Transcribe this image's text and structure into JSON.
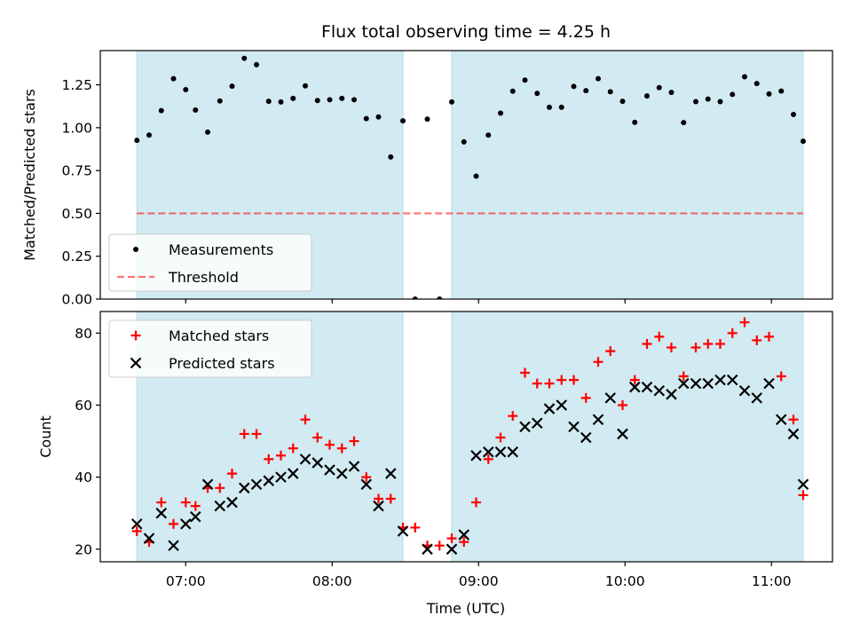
{
  "chart_data": {
    "type": "scatter",
    "title": "Flux total observing time = 4.25 h",
    "x_axis": {
      "label": "Time (UTC)",
      "range": [
        "06:25",
        "11:25"
      ],
      "ticks": [
        "07:00",
        "08:00",
        "09:00",
        "10:00",
        "11:00"
      ]
    },
    "colors": {
      "band": "#add8e6",
      "measurement": "#000000",
      "threshold": "#ff0000",
      "matched": "#ff0000",
      "predicted": "#000000"
    },
    "observing_windows": [
      [
        "06:40",
        "08:29"
      ],
      [
        "08:49",
        "11:13"
      ]
    ],
    "panels": [
      {
        "name": "ratio",
        "ylabel": "Matched/Predicted stars",
        "ylim": [
          0,
          1.45
        ],
        "yticks": [
          "0.00",
          "0.25",
          "0.50",
          "0.75",
          "1.00",
          "1.25"
        ],
        "legend_position": "lower-left",
        "series": [
          {
            "name": "Measurements",
            "marker": "dot",
            "points": [
              [
                "06:40",
                0.926
              ],
              [
                "06:45",
                0.957
              ],
              [
                "06:50",
                1.1
              ],
              [
                "06:55",
                1.286
              ],
              [
                "07:00",
                1.222
              ],
              [
                "07:04",
                1.103
              ],
              [
                "07:09",
                0.974
              ],
              [
                "07:14",
                1.156
              ],
              [
                "07:19",
                1.242
              ],
              [
                "07:24",
                1.405
              ],
              [
                "07:29",
                1.368
              ],
              [
                "07:34",
                1.154
              ],
              [
                "07:39",
                1.15
              ],
              [
                "07:44",
                1.171
              ],
              [
                "07:49",
                1.244
              ],
              [
                "07:54",
                1.159
              ],
              [
                "07:59",
                1.163
              ],
              [
                "08:04",
                1.171
              ],
              [
                "08:09",
                1.163
              ],
              [
                "08:14",
                1.053
              ],
              [
                "08:19",
                1.063
              ],
              [
                "08:24",
                0.829
              ],
              [
                "08:29",
                1.04
              ],
              [
                "08:34",
                0.0
              ],
              [
                "08:39",
                1.05
              ],
              [
                "08:44",
                0.0
              ],
              [
                "08:49",
                1.15
              ],
              [
                "08:54",
                0.917
              ],
              [
                "08:59",
                0.717
              ],
              [
                "09:04",
                0.957
              ],
              [
                "09:09",
                1.085
              ],
              [
                "09:14",
                1.213
              ],
              [
                "09:19",
                1.278
              ],
              [
                "09:24",
                1.2
              ],
              [
                "09:29",
                1.119
              ],
              [
                "09:34",
                1.119
              ],
              [
                "09:39",
                1.241
              ],
              [
                "09:44",
                1.216
              ],
              [
                "09:49",
                1.286
              ],
              [
                "09:54",
                1.21
              ],
              [
                "09:59",
                1.154
              ],
              [
                "10:04",
                1.031
              ],
              [
                "10:09",
                1.185
              ],
              [
                "10:14",
                1.234
              ],
              [
                "10:19",
                1.206
              ],
              [
                "10:24",
                1.03
              ],
              [
                "10:29",
                1.152
              ],
              [
                "10:34",
                1.167
              ],
              [
                "10:39",
                1.152
              ],
              [
                "10:44",
                1.194
              ],
              [
                "10:49",
                1.297
              ],
              [
                "10:54",
                1.258
              ],
              [
                "10:59",
                1.197
              ],
              [
                "11:04",
                1.214
              ],
              [
                "11:09",
                1.077
              ],
              [
                "11:13",
                0.921
              ]
            ]
          },
          {
            "name": "Threshold",
            "marker": "dashed-line",
            "points": [
              [
                "06:40",
                0.5
              ],
              [
                "11:13",
                0.5
              ]
            ]
          }
        ]
      },
      {
        "name": "counts",
        "ylabel": "Count",
        "ylim": [
          16.5,
          86
        ],
        "yticks": [
          "20",
          "40",
          "60",
          "80"
        ],
        "legend_position": "upper-left",
        "series": [
          {
            "name": "Matched stars",
            "marker": "plus",
            "points": [
              [
                "06:40",
                25
              ],
              [
                "06:45",
                22
              ],
              [
                "06:50",
                33
              ],
              [
                "06:55",
                27
              ],
              [
                "07:00",
                33
              ],
              [
                "07:04",
                32
              ],
              [
                "07:09",
                37
              ],
              [
                "07:14",
                37
              ],
              [
                "07:19",
                41
              ],
              [
                "07:24",
                52
              ],
              [
                "07:29",
                52
              ],
              [
                "07:34",
                45
              ],
              [
                "07:39",
                46
              ],
              [
                "07:44",
                48
              ],
              [
                "07:49",
                56
              ],
              [
                "07:54",
                51
              ],
              [
                "07:59",
                49
              ],
              [
                "08:04",
                48
              ],
              [
                "08:09",
                50
              ],
              [
                "08:14",
                40
              ],
              [
                "08:19",
                34
              ],
              [
                "08:24",
                34
              ],
              [
                "08:29",
                26
              ],
              [
                "08:34",
                26
              ],
              [
                "08:39",
                21
              ],
              [
                "08:44",
                21
              ],
              [
                "08:49",
                23
              ],
              [
                "08:54",
                22
              ],
              [
                "08:59",
                33
              ],
              [
                "09:04",
                45
              ],
              [
                "09:09",
                51
              ],
              [
                "09:14",
                57
              ],
              [
                "09:19",
                69
              ],
              [
                "09:24",
                66
              ],
              [
                "09:29",
                66
              ],
              [
                "09:34",
                67
              ],
              [
                "09:39",
                67
              ],
              [
                "09:44",
                62
              ],
              [
                "09:49",
                72
              ],
              [
                "09:54",
                75
              ],
              [
                "09:59",
                60
              ],
              [
                "10:04",
                67
              ],
              [
                "10:09",
                77
              ],
              [
                "10:14",
                79
              ],
              [
                "10:19",
                76
              ],
              [
                "10:24",
                68
              ],
              [
                "10:29",
                76
              ],
              [
                "10:34",
                77
              ],
              [
                "10:39",
                77
              ],
              [
                "10:44",
                80
              ],
              [
                "10:49",
                83
              ],
              [
                "10:54",
                78
              ],
              [
                "10:59",
                79
              ],
              [
                "11:04",
                68
              ],
              [
                "11:09",
                56
              ],
              [
                "11:13",
                35
              ]
            ]
          },
          {
            "name": "Predicted stars",
            "marker": "cross",
            "points": [
              [
                "06:40",
                27
              ],
              [
                "06:45",
                23
              ],
              [
                "06:50",
                30
              ],
              [
                "06:55",
                21
              ],
              [
                "07:00",
                27
              ],
              [
                "07:04",
                29
              ],
              [
                "07:09",
                38
              ],
              [
                "07:14",
                32
              ],
              [
                "07:19",
                33
              ],
              [
                "07:24",
                37
              ],
              [
                "07:29",
                38
              ],
              [
                "07:34",
                39
              ],
              [
                "07:39",
                40
              ],
              [
                "07:44",
                41
              ],
              [
                "07:49",
                45
              ],
              [
                "07:54",
                44
              ],
              [
                "07:59",
                42
              ],
              [
                "08:04",
                41
              ],
              [
                "08:09",
                43
              ],
              [
                "08:14",
                38
              ],
              [
                "08:19",
                32
              ],
              [
                "08:24",
                41
              ],
              [
                "08:29",
                25
              ],
              [
                "08:39",
                20
              ],
              [
                "08:49",
                20
              ],
              [
                "08:54",
                24
              ],
              [
                "08:59",
                46
              ],
              [
                "09:04",
                47
              ],
              [
                "09:09",
                47
              ],
              [
                "09:14",
                47
              ],
              [
                "09:19",
                54
              ],
              [
                "09:24",
                55
              ],
              [
                "09:29",
                59
              ],
              [
                "09:34",
                60
              ],
              [
                "09:39",
                54
              ],
              [
                "09:44",
                51
              ],
              [
                "09:49",
                56
              ],
              [
                "09:54",
                62
              ],
              [
                "09:59",
                52
              ],
              [
                "10:04",
                65
              ],
              [
                "10:09",
                65
              ],
              [
                "10:14",
                64
              ],
              [
                "10:19",
                63
              ],
              [
                "10:24",
                66
              ],
              [
                "10:29",
                66
              ],
              [
                "10:34",
                66
              ],
              [
                "10:39",
                67
              ],
              [
                "10:44",
                67
              ],
              [
                "10:49",
                64
              ],
              [
                "10:54",
                62
              ],
              [
                "10:59",
                66
              ],
              [
                "11:04",
                56
              ],
              [
                "11:09",
                52
              ],
              [
                "11:13",
                38
              ]
            ]
          }
        ]
      }
    ]
  }
}
